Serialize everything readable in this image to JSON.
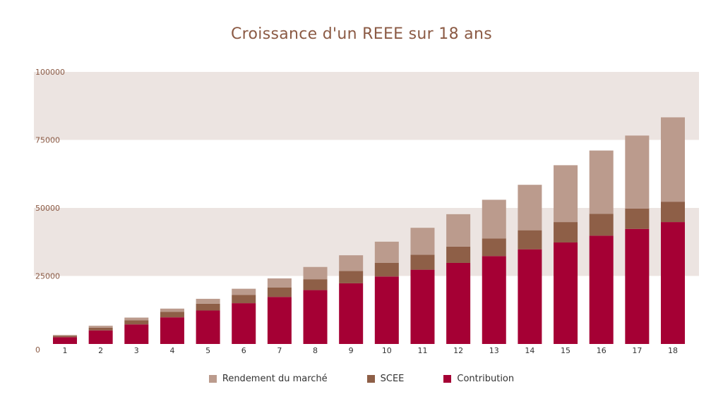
{
  "chart_data": {
    "type": "bar",
    "stacked": true,
    "title": "Croissance d'un REEE sur 18 ans",
    "xlabel": "",
    "ylabel": "",
    "ylim": [
      0,
      100000
    ],
    "yticks": [
      "0",
      "25000",
      "50000",
      "75000",
      "100000"
    ],
    "categories": [
      "1",
      "2",
      "3",
      "4",
      "5",
      "6",
      "7",
      "8",
      "9",
      "10",
      "11",
      "12",
      "13",
      "14",
      "15",
      "16",
      "17",
      "18"
    ],
    "series": [
      {
        "name": "Contribution",
        "color": "#a50034",
        "values": [
          2500,
          5000,
          7200,
          9800,
          12300,
          15000,
          17300,
          19800,
          22300,
          24800,
          27300,
          29800,
          32300,
          34800,
          37300,
          39800,
          42300,
          44800
        ]
      },
      {
        "name": "SCEE",
        "color": "#8e5f47",
        "values": [
          500,
          1000,
          1500,
          2000,
          2500,
          3000,
          3500,
          4000,
          4500,
          5000,
          5500,
          6000,
          6500,
          7000,
          7500,
          8000,
          7500,
          7500
        ]
      },
      {
        "name": "Rendement du marché",
        "color": "#bb9b8d",
        "values": [
          300,
          700,
          1000,
          1200,
          1800,
          2300,
          3300,
          4500,
          5800,
          7800,
          9900,
          11900,
          14200,
          16700,
          20900,
          23300,
          26800,
          31000
        ]
      }
    ],
    "grid_bands": true,
    "legend_position": "bottom",
    "legend_order": [
      "Rendement du marché",
      "SCEE",
      "Contribution"
    ]
  }
}
